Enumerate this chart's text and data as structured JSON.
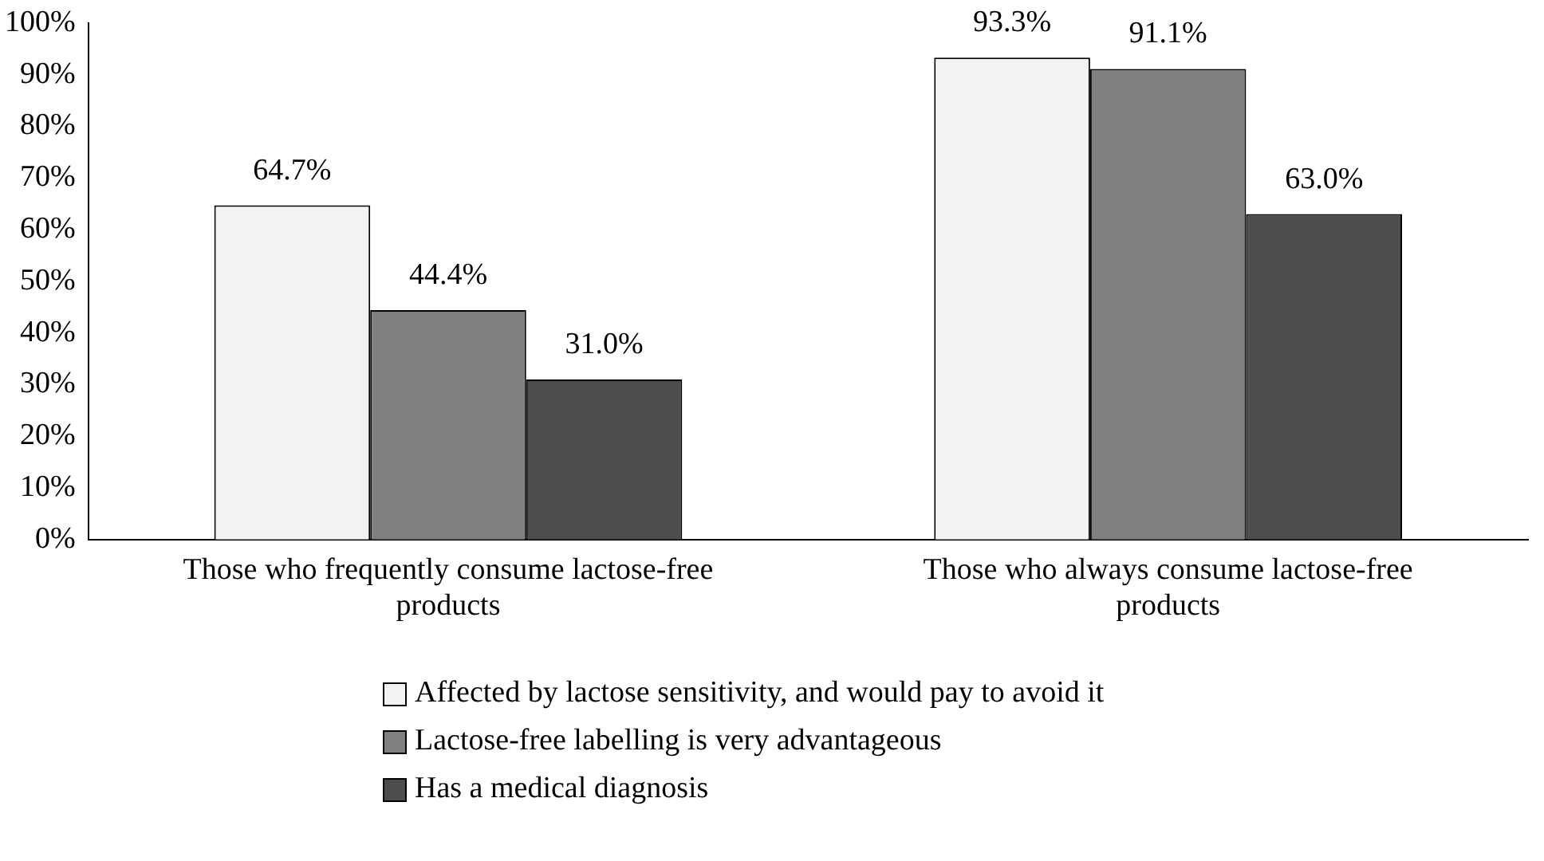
{
  "chart_data": {
    "type": "bar",
    "categories": [
      "Those who frequently consume lactose-free products",
      "Those who always consume lactose-free products"
    ],
    "series": [
      {
        "name": "Affected by lactose sensitivity, and would pay to avoid it",
        "color": "#f2f2f2",
        "values": [
          64.7,
          93.3
        ],
        "value_labels": [
          "64.7%",
          "93.3%"
        ]
      },
      {
        "name": "Lactose-free labelling is very advantageous",
        "color": "#808080",
        "values": [
          44.4,
          91.1
        ],
        "value_labels": [
          "44.4%",
          "91.1%"
        ]
      },
      {
        "name": "Has a medical diagnosis",
        "color": "#4d4d4d",
        "values": [
          31.0,
          63.0
        ],
        "value_labels": [
          "31.0%",
          "63.0%"
        ]
      }
    ],
    "ylim": [
      0,
      100
    ],
    "yticks": [
      {
        "value": 0,
        "label": "0%"
      },
      {
        "value": 10,
        "label": "10%"
      },
      {
        "value": 20,
        "label": "20%"
      },
      {
        "value": 30,
        "label": "30%"
      },
      {
        "value": 40,
        "label": "40%"
      },
      {
        "value": 50,
        "label": "50%"
      },
      {
        "value": 60,
        "label": "60%"
      },
      {
        "value": 70,
        "label": "70%"
      },
      {
        "value": 80,
        "label": "80%"
      },
      {
        "value": 90,
        "label": "90%"
      },
      {
        "value": 100,
        "label": "100%"
      }
    ],
    "grid": false,
    "legend": "bottom"
  }
}
